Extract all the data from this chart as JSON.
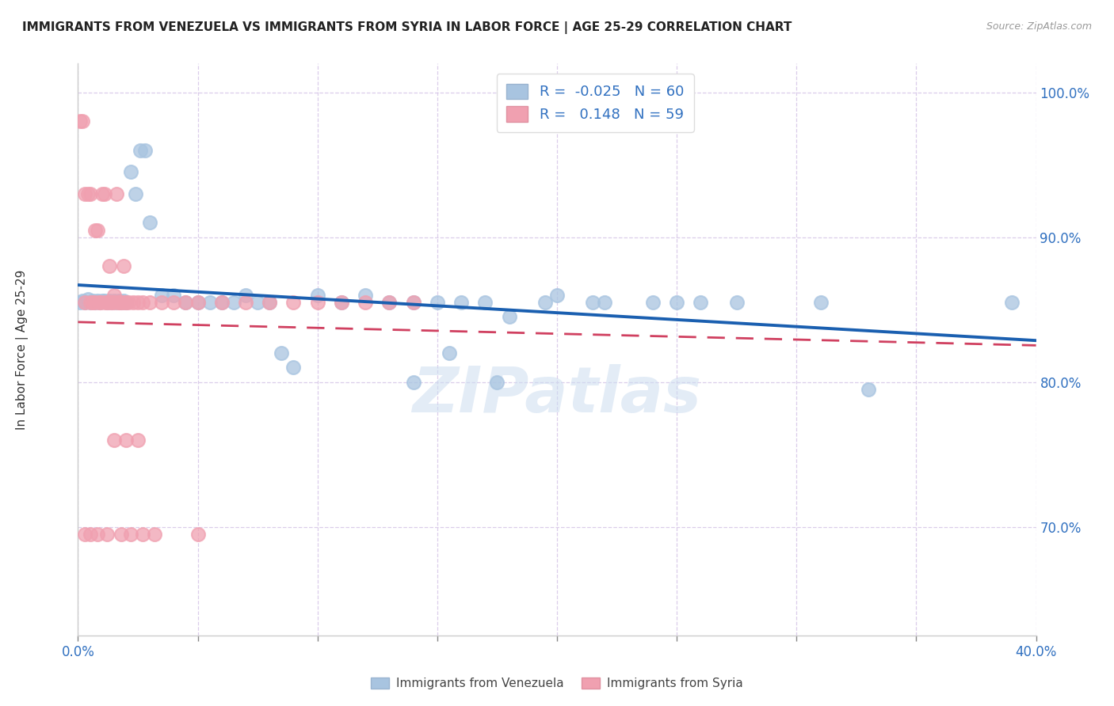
{
  "title": "IMMIGRANTS FROM VENEZUELA VS IMMIGRANTS FROM SYRIA IN LABOR FORCE | AGE 25-29 CORRELATION CHART",
  "source": "Source: ZipAtlas.com",
  "ylabel": "In Labor Force | Age 25-29",
  "xlim": [
    0.0,
    0.4
  ],
  "ylim": [
    0.625,
    1.02
  ],
  "xticks": [
    0.0,
    0.05,
    0.1,
    0.15,
    0.2,
    0.25,
    0.3,
    0.35,
    0.4
  ],
  "xtick_labels": [
    "0.0%",
    "",
    "",
    "",
    "",
    "",
    "",
    "",
    "40.0%"
  ],
  "yticks": [
    0.7,
    0.8,
    0.9,
    1.0
  ],
  "ytick_labels": [
    "70.0%",
    "80.0%",
    "90.0%",
    "100.0%"
  ],
  "R_venezuela": -0.025,
  "N_venezuela": 60,
  "R_syria": 0.148,
  "N_syria": 59,
  "color_venezuela": "#a8c4e0",
  "color_syria": "#f0a0b0",
  "trendline_venezuela_color": "#1a5fb0",
  "trendline_syria_color": "#d04060",
  "watermark": "ZIPatlas",
  "venezuela_x": [
    0.001,
    0.002,
    0.003,
    0.004,
    0.005,
    0.006,
    0.007,
    0.008,
    0.009,
    0.01,
    0.011,
    0.012,
    0.013,
    0.014,
    0.015,
    0.016,
    0.017,
    0.018,
    0.019,
    0.02,
    0.022,
    0.024,
    0.026,
    0.028,
    0.03,
    0.035,
    0.04,
    0.045,
    0.05,
    0.055,
    0.06,
    0.065,
    0.07,
    0.075,
    0.08,
    0.085,
    0.09,
    0.1,
    0.11,
    0.12,
    0.13,
    0.14,
    0.15,
    0.16,
    0.17,
    0.18,
    0.2,
    0.22,
    0.24,
    0.26,
    0.14,
    0.155,
    0.175,
    0.195,
    0.215,
    0.25,
    0.275,
    0.31,
    0.33,
    0.39
  ],
  "venezuela_y": [
    0.855,
    0.856,
    0.855,
    0.857,
    0.855,
    0.856,
    0.855,
    0.856,
    0.855,
    0.856,
    0.856,
    0.855,
    0.856,
    0.855,
    0.856,
    0.855,
    0.856,
    0.855,
    0.856,
    0.855,
    0.945,
    0.93,
    0.96,
    0.96,
    0.91,
    0.86,
    0.86,
    0.855,
    0.855,
    0.855,
    0.855,
    0.855,
    0.86,
    0.855,
    0.855,
    0.82,
    0.81,
    0.86,
    0.855,
    0.86,
    0.855,
    0.855,
    0.855,
    0.855,
    0.855,
    0.845,
    0.86,
    0.855,
    0.855,
    0.855,
    0.8,
    0.82,
    0.8,
    0.855,
    0.855,
    0.855,
    0.855,
    0.855,
    0.795,
    0.855
  ],
  "syria_x": [
    0.001,
    0.002,
    0.003,
    0.004,
    0.005,
    0.006,
    0.007,
    0.008,
    0.009,
    0.01,
    0.011,
    0.012,
    0.013,
    0.014,
    0.015,
    0.016,
    0.017,
    0.018,
    0.019,
    0.02,
    0.003,
    0.005,
    0.007,
    0.009,
    0.011,
    0.013,
    0.015,
    0.017,
    0.019,
    0.021,
    0.023,
    0.025,
    0.027,
    0.03,
    0.035,
    0.04,
    0.045,
    0.05,
    0.06,
    0.07,
    0.08,
    0.09,
    0.1,
    0.11,
    0.12,
    0.13,
    0.14,
    0.015,
    0.02,
    0.025,
    0.003,
    0.005,
    0.008,
    0.012,
    0.018,
    0.022,
    0.027,
    0.032,
    0.05
  ],
  "syria_y": [
    0.98,
    0.98,
    0.93,
    0.93,
    0.93,
    0.855,
    0.905,
    0.905,
    0.855,
    0.93,
    0.93,
    0.855,
    0.88,
    0.855,
    0.86,
    0.93,
    0.855,
    0.855,
    0.88,
    0.855,
    0.855,
    0.855,
    0.855,
    0.855,
    0.855,
    0.855,
    0.855,
    0.855,
    0.855,
    0.855,
    0.855,
    0.855,
    0.855,
    0.855,
    0.855,
    0.855,
    0.855,
    0.855,
    0.855,
    0.855,
    0.855,
    0.855,
    0.855,
    0.855,
    0.855,
    0.855,
    0.855,
    0.76,
    0.76,
    0.76,
    0.695,
    0.695,
    0.695,
    0.695,
    0.695,
    0.695,
    0.695,
    0.695,
    0.695
  ]
}
